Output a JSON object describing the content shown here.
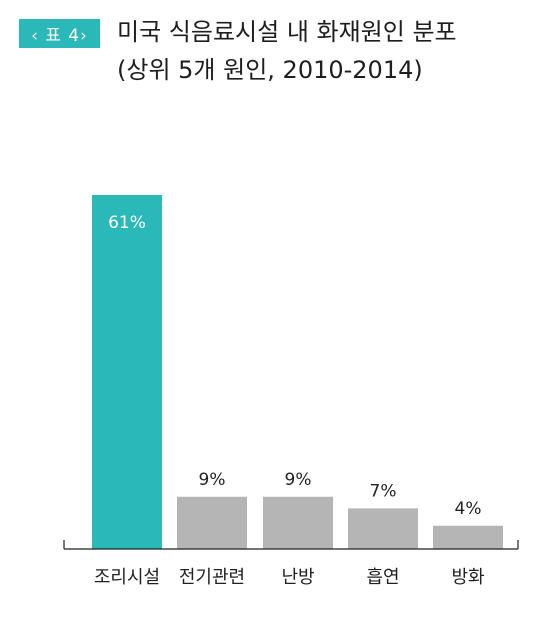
{
  "header": {
    "badge": "‹ 표 4›",
    "title": "미국 식음료시설 내 화재원인 분포",
    "subtitle": "(상위 5개 원인, 2010-2014)"
  },
  "colors": {
    "accent": "#2ab8b8",
    "bar_default": "#b5b5b5",
    "axis": "#222222"
  },
  "chart_data": {
    "type": "bar",
    "title": "미국 식음료시설 내 화재원인 분포",
    "subtitle": "(상위 5개 원인, 2010-2014)",
    "categories": [
      "조리시설",
      "전기관련",
      "난방",
      "흡연",
      "방화"
    ],
    "values": [
      61,
      9,
      9,
      7,
      4
    ],
    "value_labels": [
      "61%",
      "9%",
      "9%",
      "7%",
      "4%"
    ],
    "unit": "%",
    "highlight_index": 0,
    "ylim": [
      0,
      61
    ],
    "grid": false,
    "legend": "none",
    "xlabel": "",
    "ylabel": ""
  }
}
